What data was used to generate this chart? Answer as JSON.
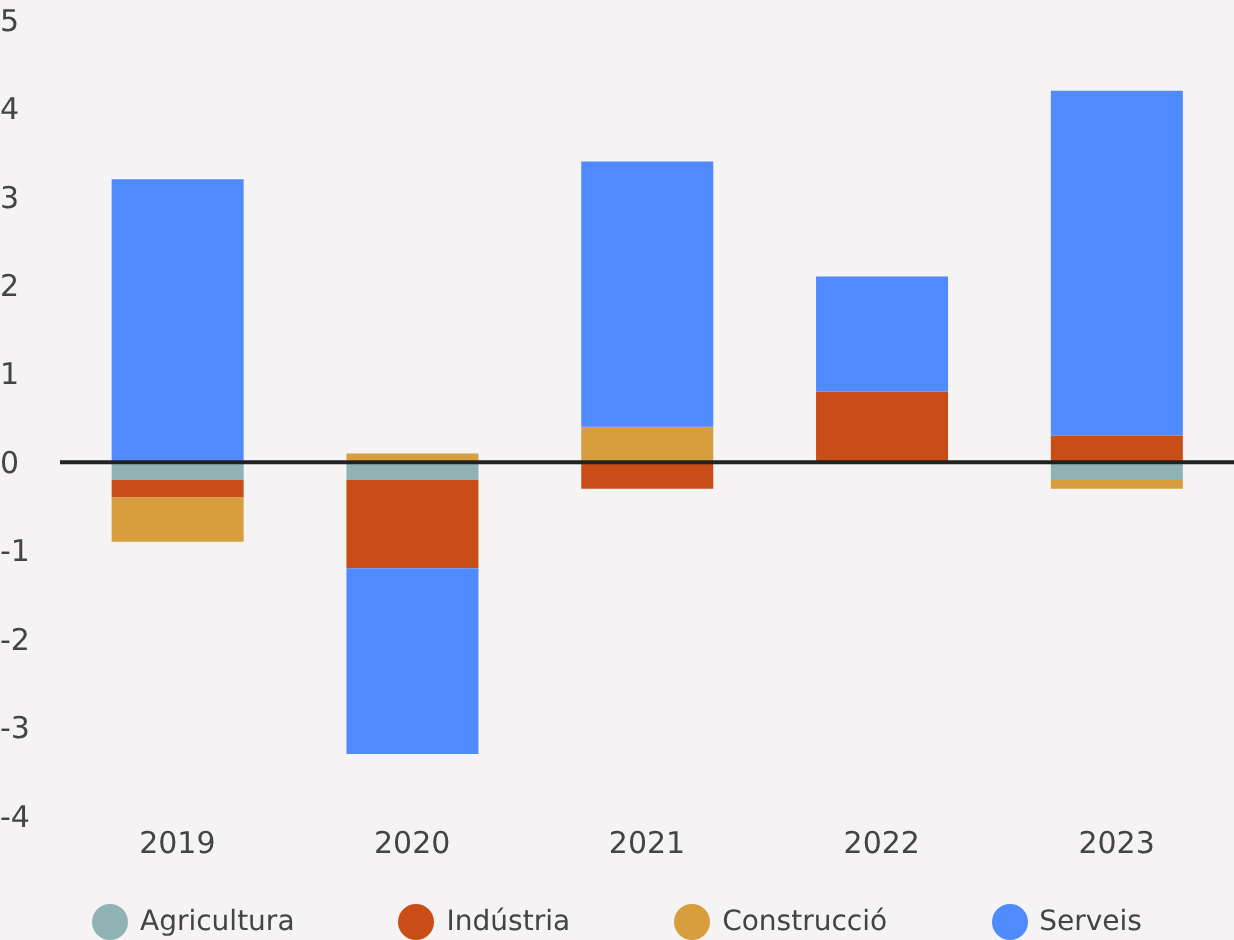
{
  "chart_data": {
    "type": "bar",
    "stacked": true,
    "categories": [
      "2019",
      "2020",
      "2021",
      "2022",
      "2023"
    ],
    "series": [
      {
        "name": "Agricultura",
        "color": "#8fb3b5",
        "values": [
          -0.2,
          -0.2,
          0,
          0,
          -0.2
        ]
      },
      {
        "name": "Indústria",
        "color": "#c94d16",
        "values": [
          -0.2,
          -1.0,
          -0.3,
          0.8,
          0.3
        ]
      },
      {
        "name": "Construcció",
        "color": "#d89e3e",
        "values": [
          -0.5,
          0.1,
          0.4,
          0,
          -0.1
        ]
      },
      {
        "name": "Serveis",
        "color": "#4f8aff",
        "values": [
          3.2,
          -2.1,
          3.0,
          1.3,
          3.9
        ]
      }
    ],
    "ylim": [
      -4,
      5
    ],
    "yticks": [
      -4,
      -3,
      -2,
      -1,
      0,
      1,
      2,
      3,
      4,
      5
    ],
    "grid": false,
    "legend": "bottom",
    "ref_lines": [
      {
        "axis": "y",
        "value": 0,
        "color": "#222222"
      }
    ]
  }
}
